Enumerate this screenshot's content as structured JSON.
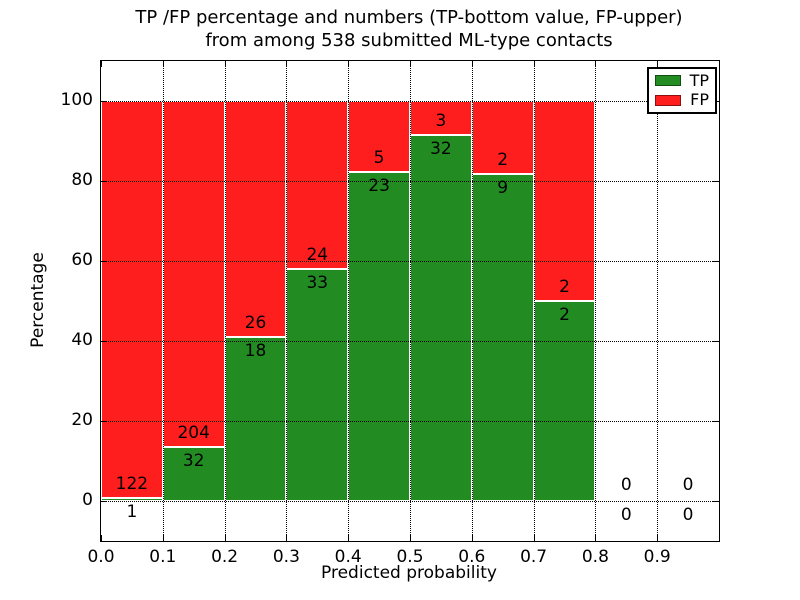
{
  "figure": {
    "title_line1": "TP /FP percentage and numbers (TP-bottom value, FP-upper)",
    "title_line2": "from among 538 submitted ML-type contacts",
    "xlabel": "Predicted probability",
    "ylabel": "Percentage"
  },
  "legend": {
    "position": "upper right",
    "items": [
      {
        "label": "TP",
        "color": "#228c22"
      },
      {
        "label": "FP",
        "color": "#ff1e1e"
      }
    ]
  },
  "chart_data": {
    "type": "bar",
    "stacked": true,
    "normalized_to_percent": true,
    "title": "TP /FP percentage and numbers (TP-bottom value, FP-upper) from among 538 submitted ML-type contacts",
    "xlabel": "Predicted probability",
    "ylabel": "Percentage",
    "xlim": [
      0.0,
      1.0
    ],
    "ylim": [
      -10,
      110
    ],
    "grid": true,
    "bin_width": 0.1,
    "bin_starts": [
      0.0,
      0.1,
      0.2,
      0.3,
      0.4,
      0.5,
      0.6,
      0.7,
      0.8,
      0.9
    ],
    "xtick_labels": [
      "0.0",
      "0.1",
      "0.2",
      "0.3",
      "0.4",
      "0.5",
      "0.6",
      "0.7",
      "0.8",
      "0.9"
    ],
    "ytick_values": [
      0,
      20,
      40,
      60,
      80,
      100
    ],
    "series": [
      {
        "name": "TP",
        "color": "#228c22",
        "counts": [
          1,
          32,
          18,
          33,
          23,
          32,
          9,
          2,
          0,
          0
        ]
      },
      {
        "name": "FP",
        "color": "#ff1e1e",
        "counts": [
          122,
          204,
          26,
          24,
          5,
          3,
          2,
          2,
          0,
          0
        ]
      }
    ],
    "tp_percent_of_bin": [
      0.81,
      13.56,
      40.91,
      57.89,
      82.14,
      91.43,
      81.82,
      50.0,
      null,
      null
    ],
    "total_submitted": 538
  },
  "colors": {
    "tp": "#228c22",
    "fp": "#ff1e1e",
    "grid": "#000000",
    "text": "#000000",
    "background": "#ffffff",
    "bar_edge": "#ffffff"
  }
}
